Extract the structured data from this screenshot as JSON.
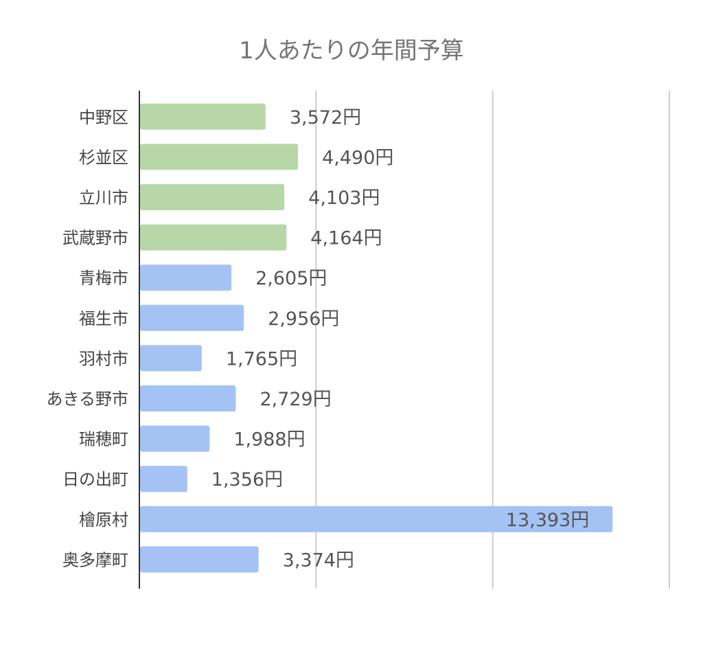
{
  "chart_data": {
    "type": "bar",
    "orientation": "horizontal",
    "title": "1人あたりの年間予算",
    "xlabel": "",
    "ylabel": "",
    "xlim": [
      0,
      15000
    ],
    "grid": true,
    "legend": "none",
    "unit_suffix": "円",
    "categories": [
      "中野区",
      "杉並区",
      "立川市",
      "武蔵野市",
      "青梅市",
      "福生市",
      "羽村市",
      "あきる野市",
      "瑞穂町",
      "日の出町",
      "檜原村",
      "奥多摩町"
    ],
    "values": [
      3572,
      4490,
      4103,
      4164,
      2605,
      2956,
      1765,
      2729,
      1988,
      1356,
      13393,
      3374
    ],
    "value_labels": [
      "3,572円",
      "4,490円",
      "4,103円",
      "4,164円",
      "2,605円",
      "2,956円",
      "1,765円",
      "2,729円",
      "1,988円",
      "1,356円",
      "13,393円",
      "3,374円"
    ],
    "bar_colors": [
      "#b7d7a8",
      "#b7d7a8",
      "#b7d7a8",
      "#b7d7a8",
      "#a4c2f4",
      "#a4c2f4",
      "#a4c2f4",
      "#a4c2f4",
      "#a4c2f4",
      "#a4c2f4",
      "#a4c2f4",
      "#a4c2f4"
    ]
  }
}
